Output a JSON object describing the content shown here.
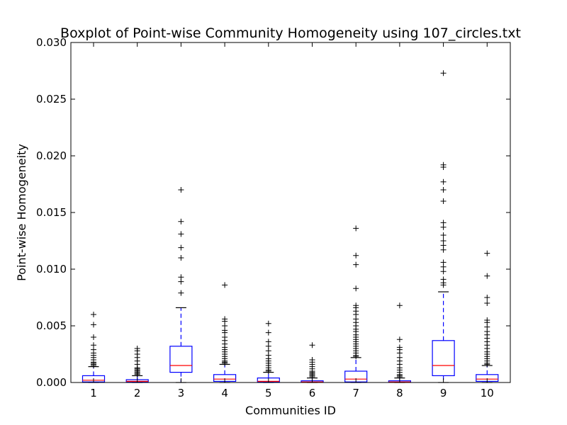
{
  "chart_data": {
    "type": "boxplot",
    "title": "Boxplot of Point-wise Community Homogeneity using 107_circles.txt",
    "xlabel": "Communities ID",
    "ylabel": "Point-wise Homogeneity",
    "ylim": [
      0,
      0.03
    ],
    "yticks": [
      "0.000",
      "0.005",
      "0.010",
      "0.015",
      "0.020",
      "0.025",
      "0.030"
    ],
    "grid": false,
    "colors": {
      "box": "#0000ff",
      "median": "#ff0000",
      "whisker": "#0000ff",
      "cap": "#000000",
      "flier": "#000000"
    },
    "categories": [
      "1",
      "2",
      "3",
      "4",
      "5",
      "6",
      "7",
      "8",
      "9",
      "10"
    ],
    "boxes": [
      {
        "q1": 5e-05,
        "median": 0.0002,
        "q3": 0.0006,
        "whislo": 0.0,
        "whishi": 0.0014,
        "fliers": [
          0.006,
          0.0051,
          0.004,
          0.0033,
          0.0029,
          0.0026,
          0.0024,
          0.0022,
          0.002,
          0.0018,
          0.0017,
          0.0016,
          0.0015
        ]
      },
      {
        "q1": 3e-05,
        "median": 0.0001,
        "q3": 0.00025,
        "whislo": 0.0,
        "whishi": 0.0006,
        "fliers": [
          0.003,
          0.0028,
          0.0025,
          0.0022,
          0.0019,
          0.0016,
          0.0013,
          0.0012,
          0.0011,
          0.001,
          0.0009,
          0.0008,
          0.0007
        ]
      },
      {
        "q1": 0.0009,
        "median": 0.0015,
        "q3": 0.0032,
        "whislo": 0.0,
        "whishi": 0.0066,
        "fliers": [
          0.017,
          0.0142,
          0.0131,
          0.0119,
          0.011,
          0.0093,
          0.0089,
          0.0079
        ]
      },
      {
        "q1": 0.0001,
        "median": 0.0003,
        "q3": 0.0007,
        "whislo": 0.0,
        "whishi": 0.0016,
        "fliers": [
          0.0086,
          0.0056,
          0.0054,
          0.005,
          0.0046,
          0.0044,
          0.004,
          0.0037,
          0.0034,
          0.0031,
          0.0029,
          0.0027,
          0.0025,
          0.0023,
          0.0021,
          0.0019,
          0.0018,
          0.0017
        ]
      },
      {
        "q1": 5e-05,
        "median": 0.0001,
        "q3": 0.0004,
        "whislo": 0.0,
        "whishi": 0.0009,
        "fliers": [
          0.0052,
          0.0044,
          0.0036,
          0.0032,
          0.0028,
          0.0024,
          0.0021,
          0.0019,
          0.0017,
          0.0015,
          0.0013,
          0.0011,
          0.001
        ]
      },
      {
        "q1": 2e-05,
        "median": 5e-05,
        "q3": 0.00015,
        "whislo": 0.0,
        "whishi": 0.0004,
        "fliers": [
          0.0033,
          0.002,
          0.0018,
          0.0016,
          0.0014,
          0.0012,
          0.001,
          0.0009,
          0.0008,
          0.0007,
          0.0006,
          0.0005
        ]
      },
      {
        "q1": 5e-05,
        "median": 0.0003,
        "q3": 0.001,
        "whislo": 0.0,
        "whishi": 0.0022,
        "fliers": [
          0.0136,
          0.0112,
          0.0104,
          0.0083,
          0.0068,
          0.0066,
          0.0063,
          0.006,
          0.0056,
          0.0053,
          0.005,
          0.0047,
          0.0045,
          0.0042,
          0.004,
          0.0038,
          0.0036,
          0.0034,
          0.0032,
          0.003,
          0.0028,
          0.0026,
          0.0024,
          0.0023
        ]
      },
      {
        "q1": 2e-05,
        "median": 5e-05,
        "q3": 0.00015,
        "whislo": 0.0,
        "whishi": 0.0004,
        "fliers": [
          0.0068,
          0.0038,
          0.0031,
          0.0029,
          0.0026,
          0.0022,
          0.0019,
          0.0016,
          0.0013,
          0.0011,
          0.0009,
          0.0007,
          0.0006,
          0.0005
        ]
      },
      {
        "q1": 0.0006,
        "median": 0.0015,
        "q3": 0.0037,
        "whislo": 0.0,
        "whishi": 0.008,
        "fliers": [
          0.0273,
          0.0192,
          0.019,
          0.0177,
          0.017,
          0.016,
          0.0141,
          0.0137,
          0.013,
          0.0125,
          0.0121,
          0.0117,
          0.0106,
          0.0102,
          0.0098,
          0.0091,
          0.0088,
          0.0086
        ]
      },
      {
        "q1": 0.0001,
        "median": 0.0003,
        "q3": 0.0007,
        "whislo": 0.0,
        "whishi": 0.0015,
        "fliers": [
          0.0114,
          0.0094,
          0.0075,
          0.007,
          0.0055,
          0.0053,
          0.0049,
          0.0045,
          0.0042,
          0.0039,
          0.0036,
          0.0033,
          0.003,
          0.0027,
          0.0025,
          0.0023,
          0.0021,
          0.0019,
          0.0017,
          0.0016
        ]
      }
    ]
  }
}
